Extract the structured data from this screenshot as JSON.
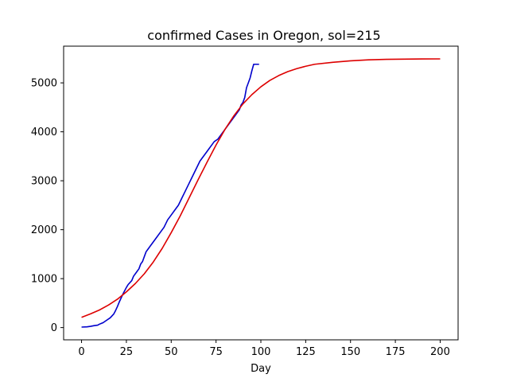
{
  "chart_data": {
    "type": "line",
    "title": "confirmed Cases in Oregon, sol=215",
    "xlabel": "Day",
    "ylabel": "",
    "xlim": [
      -10,
      210
    ],
    "ylim": [
      -250,
      5750
    ],
    "xticks": [
      0,
      25,
      50,
      75,
      100,
      125,
      150,
      175,
      200
    ],
    "yticks": [
      0,
      1000,
      2000,
      3000,
      4000,
      5000
    ],
    "grid": false,
    "series": [
      {
        "color": "#0000cc",
        "x": [
          0,
          3,
          5,
          7,
          9,
          10,
          12,
          14,
          16,
          18,
          19,
          20,
          21,
          22,
          23,
          24,
          25,
          26,
          27,
          28,
          29,
          30,
          31,
          32,
          33,
          34,
          35,
          36,
          37,
          38,
          40,
          42,
          44,
          46,
          48,
          50,
          52,
          54,
          56,
          58,
          60,
          62,
          64,
          66,
          68,
          70,
          71,
          72,
          74,
          76,
          78,
          80,
          82,
          84,
          86,
          88,
          89,
          90,
          91,
          92,
          93,
          94,
          95,
          96,
          97,
          98,
          99
        ],
        "y": [
          10,
          15,
          25,
          40,
          50,
          70,
          100,
          150,
          200,
          280,
          350,
          430,
          520,
          600,
          680,
          750,
          820,
          880,
          920,
          960,
          1050,
          1100,
          1150,
          1200,
          1300,
          1350,
          1450,
          1550,
          1600,
          1650,
          1750,
          1850,
          1950,
          2050,
          2200,
          2300,
          2400,
          2500,
          2650,
          2800,
          2950,
          3100,
          3250,
          3400,
          3500,
          3600,
          3650,
          3700,
          3800,
          3850,
          3950,
          4050,
          4150,
          4250,
          4350,
          4450,
          4550,
          4600,
          4700,
          4900,
          5000,
          5100,
          5250,
          5380,
          5380,
          5380,
          5380
        ]
      },
      {
        "color": "#dd0000",
        "x": [
          0,
          5,
          10,
          15,
          20,
          25,
          30,
          35,
          40,
          45,
          50,
          55,
          60,
          65,
          70,
          75,
          80,
          85,
          90,
          95,
          100,
          105,
          110,
          115,
          120,
          125,
          130,
          140,
          150,
          160,
          170,
          180,
          190,
          200
        ],
        "y": [
          210,
          280,
          360,
          460,
          580,
          730,
          900,
          1100,
          1340,
          1620,
          1940,
          2280,
          2650,
          3020,
          3380,
          3730,
          4050,
          4330,
          4570,
          4760,
          4920,
          5050,
          5150,
          5230,
          5290,
          5340,
          5380,
          5420,
          5450,
          5470,
          5480,
          5485,
          5488,
          5490
        ]
      }
    ]
  }
}
